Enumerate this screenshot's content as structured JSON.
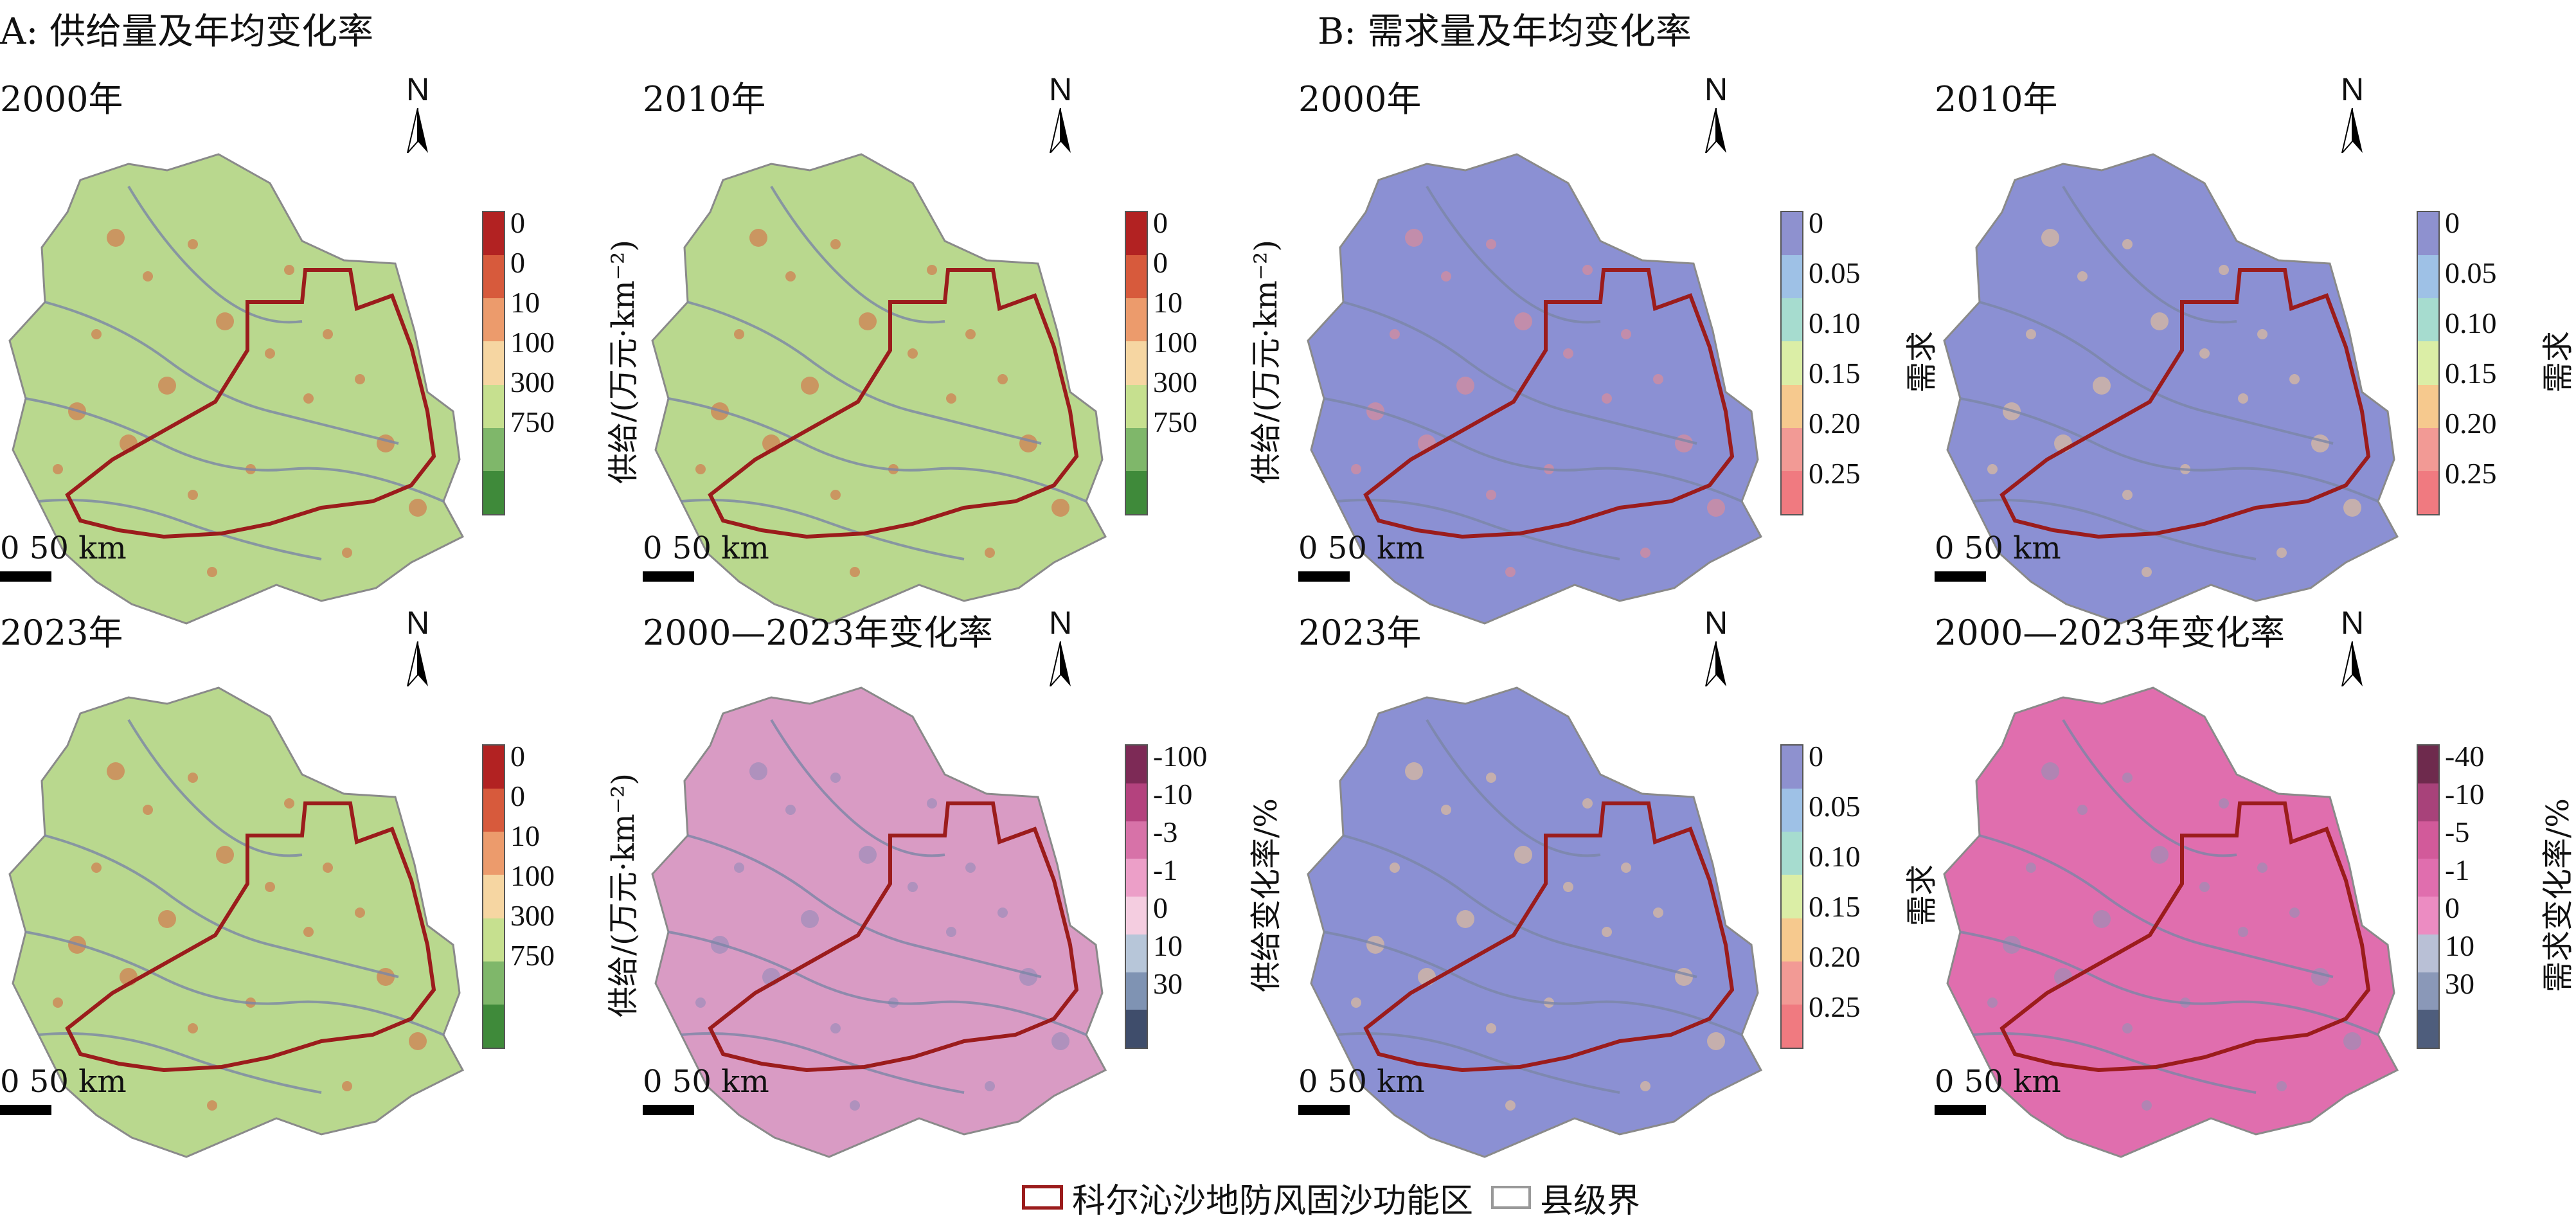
{
  "sections": {
    "a": "A: 供给量及年均变化率",
    "b": "B: 需求量及年均变化率"
  },
  "north_label": "N",
  "scale_label": "0 50 km",
  "legends": {
    "supply": {
      "title": "供给/(万元·km⁻²)",
      "ticks": [
        "0",
        "0",
        "10",
        "100",
        "300",
        "750"
      ],
      "colors": [
        "#b22222",
        "#d75a3c",
        "#ec9b6c",
        "#f6d6a2",
        "#c6e08f",
        "#7fb76a",
        "#3f8a3a"
      ]
    },
    "supply_rate": {
      "title": "供给变化率/%",
      "ticks": [
        "-100",
        "-10",
        "-3",
        "-1",
        "0",
        "10",
        "30"
      ],
      "colors": [
        "#7d2a56",
        "#b4427e",
        "#d772a8",
        "#ec9fc8",
        "#f4cde0",
        "#b7c6d9",
        "#7f93b3",
        "#3f4d6b"
      ]
    },
    "demand": {
      "title": "需求",
      "ticks": [
        "0",
        "0.05",
        "0.10",
        "0.15",
        "0.20",
        "0.25"
      ],
      "colors": [
        "#8e91cf",
        "#9ec1e6",
        "#a6dccf",
        "#dbeea6",
        "#f6c98e",
        "#f29a95",
        "#f07a80"
      ]
    },
    "demand_rate": {
      "title": "需求变化率/%",
      "ticks": [
        "-40",
        "-10",
        "-5",
        "-1",
        "0",
        "10",
        "30"
      ],
      "colors": [
        "#6e2a4d",
        "#a8427a",
        "#d25a9a",
        "#e06eae",
        "#ec8cc2",
        "#b9c0d6",
        "#8a98b8",
        "#4e5d7c"
      ]
    }
  },
  "panels": [
    {
      "title": "2000年",
      "legend": "supply",
      "fill": "#b9d88e",
      "accent": "#d9603c"
    },
    {
      "title": "2010年",
      "legend": "supply",
      "fill": "#b9d88e",
      "accent": "#d9603c"
    },
    {
      "title": "2023年",
      "legend": "supply",
      "fill": "#b9d88e",
      "accent": "#d9603c"
    },
    {
      "title": "2000—2023年变化率",
      "legend": "supply_rate",
      "fill": "#d99bc4",
      "accent": "#8d89b8"
    },
    {
      "title": "2000年",
      "legend": "demand",
      "fill": "#8b90d3",
      "accent": "#f08a8a"
    },
    {
      "title": "2010年",
      "legend": "demand",
      "fill": "#8b90d3",
      "accent": "#f6c98e"
    },
    {
      "title": "2023年",
      "legend": "demand",
      "fill": "#8b90d3",
      "accent": "#f6c98e"
    },
    {
      "title": "2000—2023年变化率",
      "legend": "demand_rate",
      "fill": "#e06eae",
      "accent": "#8a98b8"
    }
  ],
  "bottom_legend": {
    "zone": "科尔沁沙地防风固沙功能区",
    "county": "县级界"
  },
  "colors": {
    "zone_outline": "#9b1c1c",
    "river": "#7a86a6",
    "county_border": "#999999"
  }
}
